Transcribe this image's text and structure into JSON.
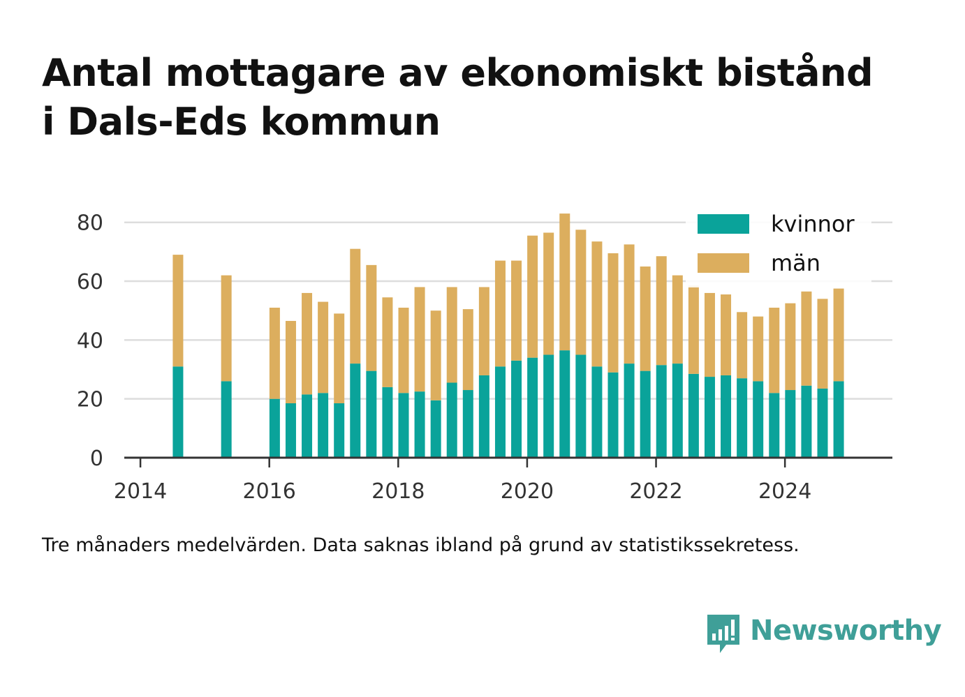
{
  "title_line1": "Antal mottagare av ekonomiskt bistånd",
  "title_line2": "i Dals-Eds kommun",
  "note": "Tre månaders medelvärden. Data saknas ibland på grund av statistikssekretess.",
  "brand": {
    "name": "Newsworthy",
    "icon": "bar-chart-speech-bubble-icon"
  },
  "colors": {
    "kvinnor": "#0aa39a",
    "man": "#dcae5e",
    "grid": "#dddddd",
    "axis": "#333333",
    "brand": "#3f9f98"
  },
  "chart_data": {
    "type": "bar",
    "stacked": true,
    "xlabel": "",
    "ylabel": "",
    "ylim": [
      0,
      88
    ],
    "y_ticks": [
      "0",
      "20",
      "40",
      "60",
      "80"
    ],
    "x_ticks": [
      "2014",
      "2016",
      "2018",
      "2020",
      "2022",
      "2024"
    ],
    "xlim": [
      "2013-10",
      "2025-09"
    ],
    "grid": true,
    "legend_position": "top-right",
    "series": [
      {
        "name": "kvinnor",
        "color": "#0aa39a",
        "points": [
          [
            "2014-08",
            31
          ],
          [
            "2015-05",
            26
          ],
          [
            "2016-02",
            20
          ],
          [
            "2016-05",
            18.5
          ],
          [
            "2016-08",
            21.5
          ],
          [
            "2016-11",
            22
          ],
          [
            "2017-02",
            18.5
          ],
          [
            "2017-05",
            32
          ],
          [
            "2017-08",
            29.5
          ],
          [
            "2017-11",
            24
          ],
          [
            "2018-02",
            22
          ],
          [
            "2018-05",
            22.5
          ],
          [
            "2018-08",
            19.5
          ],
          [
            "2018-11",
            25.5
          ],
          [
            "2019-02",
            23
          ],
          [
            "2019-05",
            28
          ],
          [
            "2019-08",
            31
          ],
          [
            "2019-11",
            33
          ],
          [
            "2020-02",
            34
          ],
          [
            "2020-05",
            35
          ],
          [
            "2020-08",
            36.5
          ],
          [
            "2020-11",
            35
          ],
          [
            "2021-02",
            31
          ],
          [
            "2021-05",
            29
          ],
          [
            "2021-08",
            32
          ],
          [
            "2021-11",
            29.5
          ],
          [
            "2022-02",
            31.5
          ],
          [
            "2022-05",
            32
          ],
          [
            "2022-08",
            28.5
          ],
          [
            "2022-11",
            27.5
          ],
          [
            "2023-02",
            28
          ],
          [
            "2023-05",
            27
          ],
          [
            "2023-08",
            26
          ],
          [
            "2023-11",
            22
          ],
          [
            "2024-02",
            23
          ],
          [
            "2024-05",
            24.5
          ],
          [
            "2024-08",
            23.5
          ],
          [
            "2024-11",
            26
          ]
        ]
      },
      {
        "name": "män",
        "color": "#dcae5e",
        "points": [
          [
            "2014-08",
            38
          ],
          [
            "2015-05",
            36
          ],
          [
            "2016-02",
            31
          ],
          [
            "2016-05",
            28
          ],
          [
            "2016-08",
            34.5
          ],
          [
            "2016-11",
            31
          ],
          [
            "2017-02",
            30.5
          ],
          [
            "2017-05",
            39
          ],
          [
            "2017-08",
            36
          ],
          [
            "2017-11",
            30.5
          ],
          [
            "2018-02",
            29
          ],
          [
            "2018-05",
            35.5
          ],
          [
            "2018-08",
            30.5
          ],
          [
            "2018-11",
            32.5
          ],
          [
            "2019-02",
            27.5
          ],
          [
            "2019-05",
            30
          ],
          [
            "2019-08",
            36
          ],
          [
            "2019-11",
            34
          ],
          [
            "2020-02",
            41.5
          ],
          [
            "2020-05",
            41.5
          ],
          [
            "2020-08",
            46.5
          ],
          [
            "2020-11",
            42.5
          ],
          [
            "2021-02",
            42.5
          ],
          [
            "2021-05",
            40.5
          ],
          [
            "2021-08",
            40.5
          ],
          [
            "2021-11",
            35.5
          ],
          [
            "2022-02",
            37
          ],
          [
            "2022-05",
            30
          ],
          [
            "2022-08",
            30
          ],
          [
            "2022-11",
            28.5
          ],
          [
            "2023-02",
            27.5
          ],
          [
            "2023-05",
            22.5
          ],
          [
            "2023-08",
            22
          ],
          [
            "2023-11",
            29
          ],
          [
            "2024-02",
            29.5
          ],
          [
            "2024-05",
            32
          ],
          [
            "2024-08",
            30.5
          ],
          [
            "2024-11",
            31.5
          ]
        ]
      }
    ]
  }
}
